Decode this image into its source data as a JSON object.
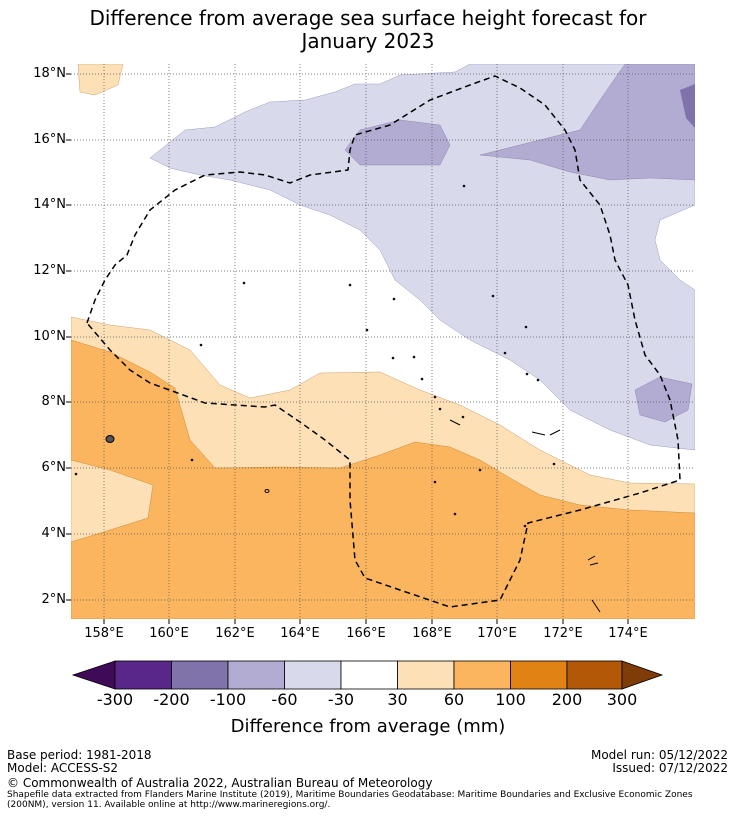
{
  "title_line1": "Difference from average sea surface height forecast for",
  "title_line2": "January 2023",
  "map": {
    "lon_range": [
      157.0,
      176.0
    ],
    "lat_range": [
      1.5,
      18.5
    ],
    "lat_ticks": [
      "18°N",
      "16°N",
      "14°N",
      "12°N",
      "10°N",
      "8°N",
      "6°N",
      "4°N",
      "2°N"
    ],
    "lon_ticks": [
      "158°E",
      "160°E",
      "162°E",
      "164°E",
      "166°E",
      "168°E",
      "170°E",
      "172°E",
      "174°E"
    ],
    "gridlines": true,
    "eez_boundary": "dashed black line (Marshall Islands EEZ)"
  },
  "colorbar": {
    "labels": [
      "-300",
      "-200",
      "-100",
      "-60",
      "-30",
      "30",
      "60",
      "100",
      "200",
      "300"
    ],
    "colors": {
      "below_-300": "#3f0a58",
      "-300_-200": "#59278a",
      "-200_-100": "#8073ac",
      "-100_-60": "#b2abd2",
      "-60_-30": "#d8daeb",
      "-30_30": "#ffffff",
      "30_60": "#fee0b6",
      "60_100": "#fab55e",
      "100_200": "#e08214",
      "200_300": "#b35806",
      "above_300": "#7f3b08"
    },
    "title": "Difference from average (mm)"
  },
  "footer": {
    "base_period": "Base period: 1981-2018",
    "model": "Model: ACCESS-S2",
    "model_run": "Model run: 05/12/2022",
    "issued": "Issued: 07/12/2022",
    "copyright": "© Commonwealth of Australia 2022, Australian Bureau of Meteorology",
    "shapefile_line1": "Shapefile data extracted from Flanders Marine Institute (2019), Maritime Boundaries Geodatabase: Maritime Boundaries and Exclusive Economic Zones",
    "shapefile_line2": "(200NM), version 11. Available online at http://www.marineregions.org/."
  }
}
